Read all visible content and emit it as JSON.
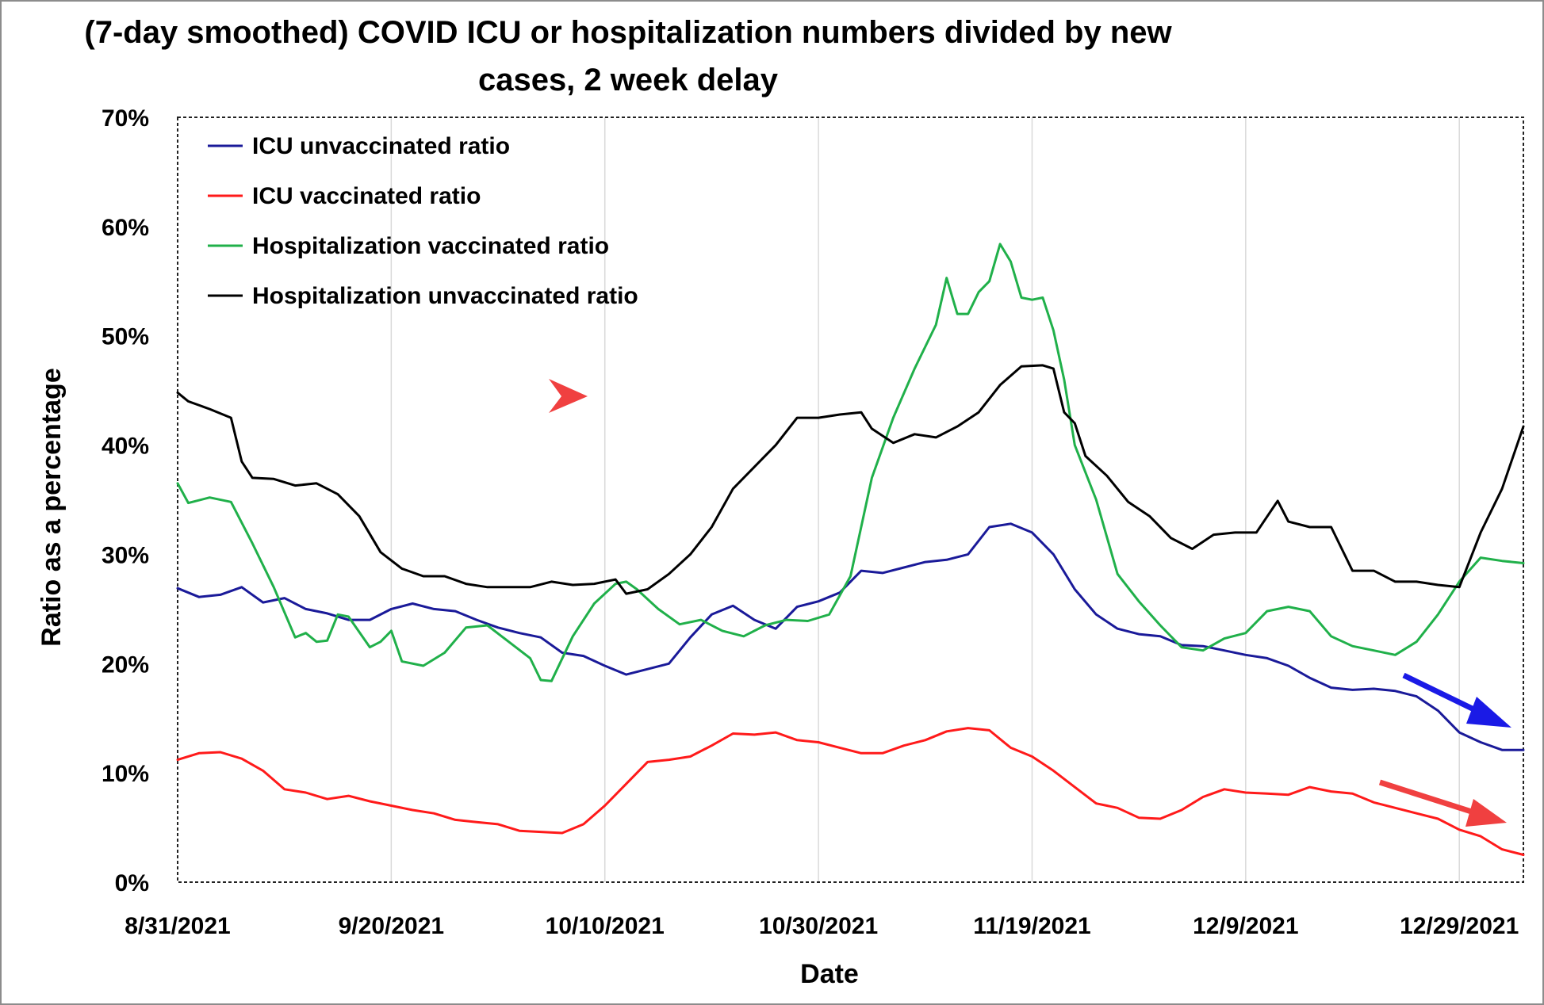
{
  "chart_data": {
    "type": "line",
    "title_line1": "(7-day smoothed) COVID ICU or hospitalization numbers divided by new",
    "title_line2": "cases, 2 week delay",
    "xlabel": "Date",
    "ylabel": "Ratio as a percentage",
    "ylim": [
      0,
      70
    ],
    "y_ticks": [
      "0%",
      "10%",
      "20%",
      "30%",
      "40%",
      "50%",
      "60%",
      "70%"
    ],
    "x_ticks": [
      "8/31/2021",
      "9/20/2021",
      "10/10/2021",
      "10/30/2021",
      "11/19/2021",
      "12/9/2021",
      "12/29/2021"
    ],
    "x_range": [
      "8/31/2021",
      "1/4/2022"
    ],
    "grid": "vertical lines at date ticks",
    "legend_position": "top-left",
    "series": [
      {
        "name": "ICU unvaccinated ratio",
        "color": "#1a1a99",
        "points": [
          [
            "8/31/2021",
            26.9
          ],
          [
            "9/2/2021",
            26.1
          ],
          [
            "9/4/2021",
            26.3
          ],
          [
            "9/6/2021",
            27.0
          ],
          [
            "9/8/2021",
            25.6
          ],
          [
            "9/10/2021",
            26.0
          ],
          [
            "9/12/2021",
            25.0
          ],
          [
            "9/14/2021",
            24.6
          ],
          [
            "9/16/2021",
            24.0
          ],
          [
            "9/18/2021",
            24.0
          ],
          [
            "9/20/2021",
            25.0
          ],
          [
            "9/22/2021",
            25.5
          ],
          [
            "9/24/2021",
            25.0
          ],
          [
            "9/26/2021",
            24.8
          ],
          [
            "9/28/2021",
            24.0
          ],
          [
            "9/30/2021",
            23.3
          ],
          [
            "10/2/2021",
            22.8
          ],
          [
            "10/4/2021",
            22.4
          ],
          [
            "10/6/2021",
            21.0
          ],
          [
            "10/8/2021",
            20.7
          ],
          [
            "10/10/2021",
            19.8
          ],
          [
            "10/12/2021",
            19.0
          ],
          [
            "10/14/2021",
            19.5
          ],
          [
            "10/16/2021",
            20.0
          ],
          [
            "10/18/2021",
            22.4
          ],
          [
            "10/20/2021",
            24.5
          ],
          [
            "10/22/2021",
            25.3
          ],
          [
            "10/24/2021",
            24.0
          ],
          [
            "10/26/2021",
            23.2
          ],
          [
            "10/28/2021",
            25.2
          ],
          [
            "10/30/2021",
            25.7
          ],
          [
            "11/1/2021",
            26.5
          ],
          [
            "11/3/2021",
            28.5
          ],
          [
            "11/5/2021",
            28.3
          ],
          [
            "11/7/2021",
            28.8
          ],
          [
            "11/9/2021",
            29.3
          ],
          [
            "11/11/2021",
            29.5
          ],
          [
            "11/13/2021",
            30.0
          ],
          [
            "11/15/2021",
            32.5
          ],
          [
            "11/17/2021",
            32.8
          ],
          [
            "11/19/2021",
            32.0
          ],
          [
            "11/21/2021",
            30.0
          ],
          [
            "11/23/2021",
            26.8
          ],
          [
            "11/25/2021",
            24.5
          ],
          [
            "11/27/2021",
            23.2
          ],
          [
            "11/29/2021",
            22.7
          ],
          [
            "12/1/2021",
            22.5
          ],
          [
            "12/3/2021",
            21.7
          ],
          [
            "12/5/2021",
            21.6
          ],
          [
            "12/7/2021",
            21.2
          ],
          [
            "12/9/2021",
            20.8
          ],
          [
            "12/11/2021",
            20.5
          ],
          [
            "12/13/2021",
            19.8
          ],
          [
            "12/15/2021",
            18.7
          ],
          [
            "12/17/2021",
            17.8
          ],
          [
            "12/19/2021",
            17.6
          ],
          [
            "12/21/2021",
            17.7
          ],
          [
            "12/23/2021",
            17.5
          ],
          [
            "12/25/2021",
            17.0
          ],
          [
            "12/27/2021",
            15.7
          ],
          [
            "12/29/2021",
            13.7
          ],
          [
            "12/31/2021",
            12.8
          ],
          [
            "1/2/2022",
            12.1
          ],
          [
            "1/4/2022",
            12.1
          ]
        ]
      },
      {
        "name": "ICU vaccinated ratio",
        "color": "#ff1a1a",
        "points": [
          [
            "8/31/2021",
            11.2
          ],
          [
            "9/2/2021",
            11.8
          ],
          [
            "9/4/2021",
            11.9
          ],
          [
            "9/6/2021",
            11.3
          ],
          [
            "9/8/2021",
            10.2
          ],
          [
            "9/10/2021",
            8.5
          ],
          [
            "9/12/2021",
            8.2
          ],
          [
            "9/14/2021",
            7.6
          ],
          [
            "9/16/2021",
            7.9
          ],
          [
            "9/18/2021",
            7.4
          ],
          [
            "9/20/2021",
            7.0
          ],
          [
            "9/22/2021",
            6.6
          ],
          [
            "9/24/2021",
            6.3
          ],
          [
            "9/26/2021",
            5.7
          ],
          [
            "9/28/2021",
            5.5
          ],
          [
            "9/30/2021",
            5.3
          ],
          [
            "10/2/2021",
            4.7
          ],
          [
            "10/4/2021",
            4.6
          ],
          [
            "10/6/2021",
            4.5
          ],
          [
            "10/8/2021",
            5.3
          ],
          [
            "10/10/2021",
            7.0
          ],
          [
            "10/12/2021",
            9.0
          ],
          [
            "10/14/2021",
            11.0
          ],
          [
            "10/16/2021",
            11.2
          ],
          [
            "10/18/2021",
            11.5
          ],
          [
            "10/20/2021",
            12.5
          ],
          [
            "10/22/2021",
            13.6
          ],
          [
            "10/24/2021",
            13.5
          ],
          [
            "10/26/2021",
            13.7
          ],
          [
            "10/28/2021",
            13.0
          ],
          [
            "10/30/2021",
            12.8
          ],
          [
            "11/1/2021",
            12.3
          ],
          [
            "11/3/2021",
            11.8
          ],
          [
            "11/5/2021",
            11.8
          ],
          [
            "11/7/2021",
            12.5
          ],
          [
            "11/9/2021",
            13.0
          ],
          [
            "11/11/2021",
            13.8
          ],
          [
            "11/13/2021",
            14.1
          ],
          [
            "11/15/2021",
            13.9
          ],
          [
            "11/17/2021",
            12.3
          ],
          [
            "11/19/2021",
            11.5
          ],
          [
            "11/21/2021",
            10.2
          ],
          [
            "11/23/2021",
            8.7
          ],
          [
            "11/25/2021",
            7.2
          ],
          [
            "11/27/2021",
            6.8
          ],
          [
            "11/29/2021",
            5.9
          ],
          [
            "12/1/2021",
            5.8
          ],
          [
            "12/3/2021",
            6.6
          ],
          [
            "12/5/2021",
            7.8
          ],
          [
            "12/7/2021",
            8.5
          ],
          [
            "12/9/2021",
            8.2
          ],
          [
            "12/11/2021",
            8.1
          ],
          [
            "12/13/2021",
            8.0
          ],
          [
            "12/15/2021",
            8.7
          ],
          [
            "12/17/2021",
            8.3
          ],
          [
            "12/19/2021",
            8.1
          ],
          [
            "12/21/2021",
            7.3
          ],
          [
            "12/23/2021",
            6.8
          ],
          [
            "12/25/2021",
            6.3
          ],
          [
            "12/27/2021",
            5.8
          ],
          [
            "12/29/2021",
            4.8
          ],
          [
            "12/31/2021",
            4.2
          ],
          [
            "1/2/2022",
            3.0
          ],
          [
            "1/4/2022",
            2.5
          ]
        ]
      },
      {
        "name": "Hospitalization vaccinated ratio",
        "color": "#20b04a",
        "points": [
          [
            "8/31/2021",
            36.5
          ],
          [
            "9/1/2021",
            34.7
          ],
          [
            "9/3/2021",
            35.2
          ],
          [
            "9/5/2021",
            34.8
          ],
          [
            "9/7/2021",
            31.0
          ],
          [
            "9/9/2021",
            27.0
          ],
          [
            "9/11/2021",
            22.4
          ],
          [
            "9/12/2021",
            22.8
          ],
          [
            "9/13/2021",
            22.0
          ],
          [
            "9/14/2021",
            22.1
          ],
          [
            "9/15/2021",
            24.5
          ],
          [
            "9/16/2021",
            24.3
          ],
          [
            "9/18/2021",
            21.5
          ],
          [
            "9/19/2021",
            22.0
          ],
          [
            "9/20/2021",
            23.0
          ],
          [
            "9/21/2021",
            20.2
          ],
          [
            "9/23/2021",
            19.8
          ],
          [
            "9/25/2021",
            21.0
          ],
          [
            "9/27/2021",
            23.3
          ],
          [
            "9/29/2021",
            23.5
          ],
          [
            "10/1/2021",
            22.0
          ],
          [
            "10/3/2021",
            20.5
          ],
          [
            "10/4/2021",
            18.5
          ],
          [
            "10/5/2021",
            18.4
          ],
          [
            "10/7/2021",
            22.5
          ],
          [
            "10/9/2021",
            25.5
          ],
          [
            "10/11/2021",
            27.3
          ],
          [
            "10/12/2021",
            27.5
          ],
          [
            "10/13/2021",
            26.8
          ],
          [
            "10/15/2021",
            25.0
          ],
          [
            "10/17/2021",
            23.6
          ],
          [
            "10/19/2021",
            24.0
          ],
          [
            "10/21/2021",
            23.0
          ],
          [
            "10/23/2021",
            22.5
          ],
          [
            "10/25/2021",
            23.5
          ],
          [
            "10/27/2021",
            24.0
          ],
          [
            "10/29/2021",
            23.9
          ],
          [
            "10/31/2021",
            24.5
          ],
          [
            "11/2/2021",
            28.0
          ],
          [
            "11/4/2021",
            37.0
          ],
          [
            "11/6/2021",
            42.5
          ],
          [
            "11/8/2021",
            47.0
          ],
          [
            "11/10/2021",
            51.0
          ],
          [
            "11/11/2021",
            55.3
          ],
          [
            "11/12/2021",
            52.0
          ],
          [
            "11/13/2021",
            52.0
          ],
          [
            "11/14/2021",
            54.0
          ],
          [
            "11/15/2021",
            55.0
          ],
          [
            "11/16/2021",
            58.4
          ],
          [
            "11/17/2021",
            56.8
          ],
          [
            "11/18/2021",
            53.5
          ],
          [
            "11/19/2021",
            53.3
          ],
          [
            "11/20/2021",
            53.5
          ],
          [
            "11/21/2021",
            50.5
          ],
          [
            "11/22/2021",
            46.0
          ],
          [
            "11/23/2021",
            40.0
          ],
          [
            "11/25/2021",
            35.0
          ],
          [
            "11/27/2021",
            28.2
          ],
          [
            "11/29/2021",
            25.7
          ],
          [
            "12/1/2021",
            23.5
          ],
          [
            "12/3/2021",
            21.5
          ],
          [
            "12/5/2021",
            21.2
          ],
          [
            "12/7/2021",
            22.3
          ],
          [
            "12/9/2021",
            22.8
          ],
          [
            "12/11/2021",
            24.8
          ],
          [
            "12/13/2021",
            25.2
          ],
          [
            "12/15/2021",
            24.8
          ],
          [
            "12/17/2021",
            22.5
          ],
          [
            "12/19/2021",
            21.6
          ],
          [
            "12/21/2021",
            21.2
          ],
          [
            "12/23/2021",
            20.8
          ],
          [
            "12/25/2021",
            22.0
          ],
          [
            "12/27/2021",
            24.5
          ],
          [
            "12/29/2021",
            27.5
          ],
          [
            "12/31/2021",
            29.7
          ],
          [
            "1/2/2022",
            29.4
          ],
          [
            "1/4/2022",
            29.2
          ]
        ]
      },
      {
        "name": "Hospitalization unvaccinated ratio",
        "color": "#000000",
        "points": [
          [
            "8/31/2021",
            44.8
          ],
          [
            "9/1/2021",
            44.0
          ],
          [
            "9/3/2021",
            43.3
          ],
          [
            "9/5/2021",
            42.5
          ],
          [
            "9/6/2021",
            38.5
          ],
          [
            "9/7/2021",
            37.0
          ],
          [
            "9/9/2021",
            36.9
          ],
          [
            "9/11/2021",
            36.3
          ],
          [
            "9/13/2021",
            36.5
          ],
          [
            "9/15/2021",
            35.5
          ],
          [
            "9/17/2021",
            33.5
          ],
          [
            "9/19/2021",
            30.2
          ],
          [
            "9/21/2021",
            28.7
          ],
          [
            "9/23/2021",
            28.0
          ],
          [
            "9/25/2021",
            28.0
          ],
          [
            "9/27/2021",
            27.3
          ],
          [
            "9/29/2021",
            27.0
          ],
          [
            "10/1/2021",
            27.0
          ],
          [
            "10/3/2021",
            27.0
          ],
          [
            "10/5/2021",
            27.5
          ],
          [
            "10/7/2021",
            27.2
          ],
          [
            "10/9/2021",
            27.3
          ],
          [
            "10/11/2021",
            27.7
          ],
          [
            "10/12/2021",
            26.4
          ],
          [
            "10/14/2021",
            26.8
          ],
          [
            "10/16/2021",
            28.2
          ],
          [
            "10/18/2021",
            30.0
          ],
          [
            "10/20/2021",
            32.5
          ],
          [
            "10/22/2021",
            36.0
          ],
          [
            "10/24/2021",
            38.0
          ],
          [
            "10/26/2021",
            40.0
          ],
          [
            "10/28/2021",
            42.5
          ],
          [
            "10/30/2021",
            42.5
          ],
          [
            "11/1/2021",
            42.8
          ],
          [
            "11/3/2021",
            43.0
          ],
          [
            "11/4/2021",
            41.5
          ],
          [
            "11/6/2021",
            40.2
          ],
          [
            "11/8/2021",
            41.0
          ],
          [
            "11/10/2021",
            40.7
          ],
          [
            "11/12/2021",
            41.7
          ],
          [
            "11/14/2021",
            43.0
          ],
          [
            "11/16/2021",
            45.5
          ],
          [
            "11/18/2021",
            47.2
          ],
          [
            "11/20/2021",
            47.3
          ],
          [
            "11/21/2021",
            47.0
          ],
          [
            "11/22/2021",
            43.0
          ],
          [
            "11/23/2021",
            42.0
          ],
          [
            "11/24/2021",
            39.0
          ],
          [
            "11/26/2021",
            37.2
          ],
          [
            "11/28/2021",
            34.8
          ],
          [
            "11/30/2021",
            33.5
          ],
          [
            "12/2/2021",
            31.5
          ],
          [
            "12/4/2021",
            30.5
          ],
          [
            "12/6/2021",
            31.8
          ],
          [
            "12/8/2021",
            32.0
          ],
          [
            "12/10/2021",
            32.0
          ],
          [
            "12/12/2021",
            34.9
          ],
          [
            "12/13/2021",
            33.0
          ],
          [
            "12/15/2021",
            32.5
          ],
          [
            "12/17/2021",
            32.5
          ],
          [
            "12/19/2021",
            28.5
          ],
          [
            "12/21/2021",
            28.5
          ],
          [
            "12/23/2021",
            27.5
          ],
          [
            "12/25/2021",
            27.5
          ],
          [
            "12/27/2021",
            27.2
          ],
          [
            "12/29/2021",
            27.0
          ],
          [
            "12/31/2021",
            32.0
          ],
          [
            "1/2/2022",
            36.0
          ],
          [
            "1/4/2022",
            41.7
          ]
        ]
      }
    ]
  },
  "annotations": [
    {
      "name": "red-arrowhead",
      "color": "#f04040"
    },
    {
      "name": "blue-trend-arrow",
      "color": "#1a1ae6"
    },
    {
      "name": "red-trend-arrow",
      "color": "#f04040"
    }
  ]
}
